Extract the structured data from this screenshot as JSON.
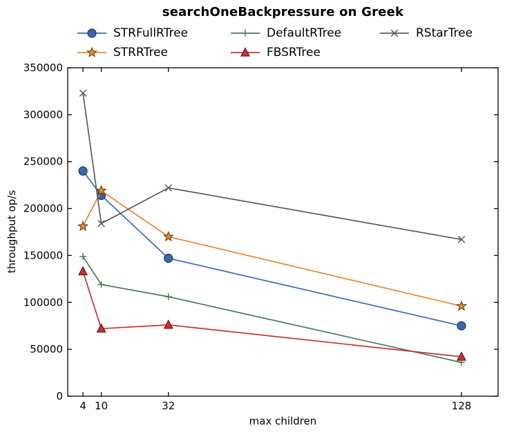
{
  "window": {
    "background": "#ffffff",
    "text_color": "#000000"
  },
  "chart_data": {
    "type": "line",
    "title": "searchOneBackpressure on Greek",
    "xlabel": "max children",
    "ylabel": "throughput op/s",
    "x": [
      4,
      10,
      32,
      128
    ],
    "xtick_labels": [
      "4",
      "10",
      "32",
      "128"
    ],
    "yticks": [
      0,
      50000,
      100000,
      150000,
      200000,
      250000,
      300000,
      350000
    ],
    "ytick_labels": [
      "0",
      "50000",
      "100000",
      "150000",
      "200000",
      "250000",
      "300000",
      "350000"
    ],
    "xlim": [
      -1,
      140
    ],
    "ylim": [
      0,
      350000
    ],
    "grid": false,
    "legend_position": "top",
    "axis_color": "#000000",
    "series": [
      {
        "name": "STRFullRTree",
        "marker": "circle",
        "color": "#3a67b1",
        "marker_fill": "#3a67b1",
        "marker_edge": "#17365c",
        "values": [
          240000,
          214000,
          147000,
          75000
        ]
      },
      {
        "name": "STRRTree",
        "marker": "star",
        "color": "#e8862e",
        "marker_fill": "#e8862e",
        "marker_edge": "#5c3a0d",
        "values": [
          181000,
          219000,
          170000,
          96000
        ]
      },
      {
        "name": "DefaultRTree",
        "marker": "plus",
        "color": "#4d7a55",
        "marker_fill": "none",
        "marker_edge": "#4d7a55",
        "values": [
          149000,
          119000,
          106000,
          36000
        ]
      },
      {
        "name": "FBSRTree",
        "marker": "triangle",
        "color": "#c53232",
        "marker_fill": "#c53232",
        "marker_edge": "#6e1212",
        "values": [
          133000,
          72000,
          76000,
          42000
        ]
      },
      {
        "name": "RStarTree",
        "marker": "x",
        "color": "#5a5a5a",
        "marker_fill": "none",
        "marker_edge": "#5a5a5a",
        "values": [
          323000,
          184000,
          222000,
          167000
        ]
      }
    ]
  },
  "legend": {
    "rows": [
      [
        "STRFullRTree",
        "DefaultRTree",
        "RStarTree"
      ],
      [
        "STRRTree",
        "FBSRTree"
      ]
    ]
  }
}
